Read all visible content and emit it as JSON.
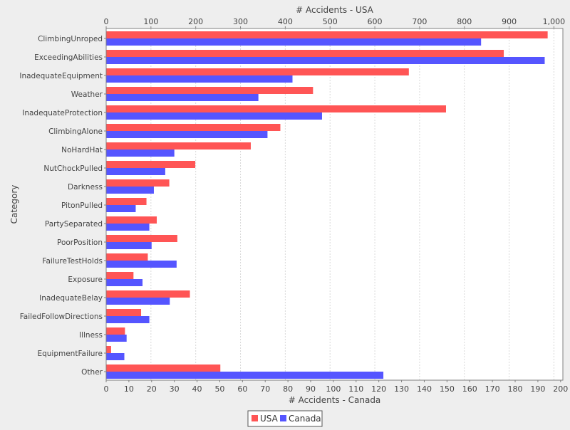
{
  "chart_data": {
    "type": "bar",
    "orientation": "horizontal",
    "ylabel": "Category",
    "categories": [
      "ClimbingUnroped",
      "ExceedingAbilities",
      "InadequateEquipment",
      "Weather",
      "InadequateProtection",
      "ClimbingAlone",
      "NoHardHat",
      "NutChockPulled",
      "Darkness",
      "PitonPulled",
      "PartySeparated",
      "PoorPosition",
      "FailureTestHolds",
      "Exposure",
      "InadequateBelay",
      "FailedFollowDirections",
      "Illness",
      "EquipmentFailure",
      "Other"
    ],
    "series": [
      {
        "name": "USA",
        "axis": "top",
        "color": "#ff5555",
        "values": [
          986,
          888,
          676,
          462,
          759,
          389,
          323,
          199,
          141,
          90,
          113,
          159,
          93,
          61,
          187,
          78,
          42,
          11,
          255
        ]
      },
      {
        "name": "Canada",
        "axis": "bottom",
        "color": "#5555ff",
        "values": [
          165,
          193,
          82,
          67,
          95,
          71,
          30,
          26,
          21,
          13,
          19,
          20,
          31,
          16,
          28,
          19,
          9,
          8,
          122
        ]
      }
    ],
    "axes": {
      "top": {
        "label": "# Accidents - USA",
        "range": [
          0,
          1020
        ],
        "ticks": [
          "0",
          "100",
          "200",
          "300",
          "400",
          "500",
          "600",
          "700",
          "800",
          "900",
          "1,000"
        ],
        "tick_values": [
          0,
          100,
          200,
          300,
          400,
          500,
          600,
          700,
          800,
          900,
          1000
        ]
      },
      "bottom": {
        "label": "# Accidents - Canada",
        "range": [
          0,
          201
        ],
        "ticks": [
          "0",
          "10",
          "20",
          "30",
          "40",
          "50",
          "60",
          "70",
          "80",
          "90",
          "100",
          "110",
          "120",
          "130",
          "140",
          "150",
          "160",
          "170",
          "180",
          "190",
          "200"
        ],
        "tick_values": [
          0,
          10,
          20,
          30,
          40,
          50,
          60,
          70,
          80,
          90,
          100,
          110,
          120,
          130,
          140,
          150,
          160,
          170,
          180,
          190,
          200
        ]
      }
    },
    "grid": true,
    "legend": "bottom"
  },
  "legend": {
    "items": [
      {
        "label": "USA",
        "color": "#ff5555"
      },
      {
        "label": "Canada",
        "color": "#5555ff"
      }
    ]
  }
}
